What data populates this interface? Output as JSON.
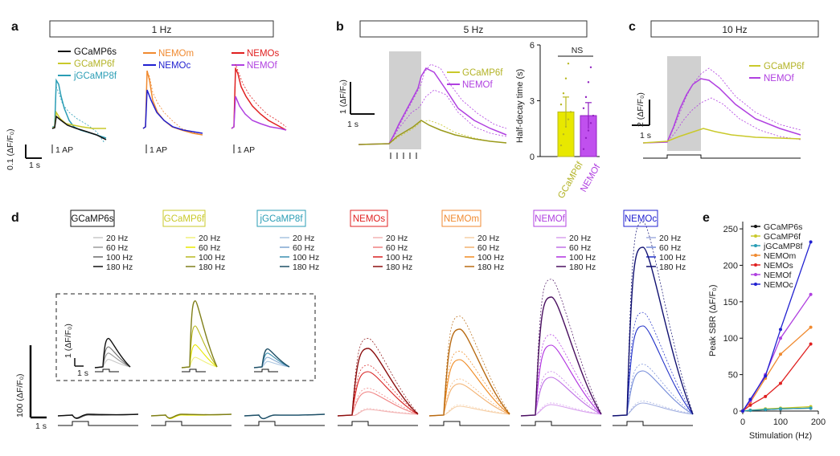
{
  "panels": {
    "a": {
      "label": "a",
      "header": "1 Hz",
      "group1": [
        "GCaMP6s",
        "GCaMP6f",
        "jGCaMP8f"
      ],
      "group2": [
        "NEMOm",
        "NEMOc"
      ],
      "group3": [
        "NEMOs",
        "NEMOf"
      ],
      "scale_y": "0.1 (ΔF/F₀)",
      "scale_x": "1 s",
      "stim": "1 AP"
    },
    "b": {
      "label": "b",
      "header": "5 Hz",
      "legend": [
        "GCaMP6f",
        "NEMOf"
      ],
      "scale_y": "1 (ΔF/F₀)",
      "scale_x": "1 s",
      "bar_ylabel": "Half-decay time (s)",
      "ns": "NS"
    },
    "c": {
      "label": "c",
      "header": "10 Hz",
      "legend": [
        "GCaMP6f",
        "NEMOf"
      ],
      "scale_y": "2 (ΔF/F₀)",
      "scale_x": "1 s"
    },
    "d": {
      "label": "d",
      "scale_y": "100 (ΔF/F₀)",
      "scale_x": "1 s",
      "inset_scale_y": "1 (ΔF/F₀)",
      "inset_scale_x": "1 s",
      "sensors": [
        {
          "name": "GCaMP6s",
          "color": "#111111",
          "freqs": [
            "20 Hz",
            "60 Hz",
            "100 Hz",
            "180 Hz"
          ],
          "shades": [
            "#c8c8c8",
            "#9a9a9a",
            "#6a6a6a",
            "#111111"
          ]
        },
        {
          "name": "GCaMP6f",
          "color": "#c9c92a",
          "freqs": [
            "20 Hz",
            "60 Hz",
            "100 Hz",
            "180 Hz"
          ],
          "shades": [
            "#f0f07a",
            "#e8e800",
            "#b8b820",
            "#7f7f1a"
          ]
        },
        {
          "name": "jGCaMP8f",
          "color": "#2a9db5",
          "freqs": [
            "20 Hz",
            "60 Hz",
            "100 Hz",
            "180 Hz"
          ],
          "shades": [
            "#a9c4e0",
            "#7fa6d0",
            "#3b8fb0",
            "#1e4f66"
          ]
        },
        {
          "name": "NEMOs",
          "color": "#e02020",
          "freqs": [
            "20 Hz",
            "60 Hz",
            "100 Hz",
            "180 Hz"
          ],
          "shades": [
            "#f2b3b3",
            "#f08080",
            "#d82020",
            "#8c0f0f"
          ]
        },
        {
          "name": "NEMOm",
          "color": "#f08a30",
          "freqs": [
            "20 Hz",
            "60 Hz",
            "100 Hz",
            "180 Hz"
          ],
          "shades": [
            "#f6cfa6",
            "#f3b06e",
            "#f08a20",
            "#b86a12"
          ]
        },
        {
          "name": "NEMOf",
          "color": "#b040e0",
          "freqs": [
            "20 Hz",
            "60 Hz",
            "100 Hz",
            "180 Hz"
          ],
          "shades": [
            "#d8a0ee",
            "#c070e6",
            "#b030e0",
            "#4a1060"
          ]
        },
        {
          "name": "NEMOc",
          "color": "#2020d0",
          "freqs": [
            "20 Hz",
            "60 Hz",
            "100 Hz",
            "180 Hz"
          ],
          "shades": [
            "#a0aee0",
            "#7088d8",
            "#2030c8",
            "#101070"
          ]
        }
      ]
    },
    "e": {
      "label": "e",
      "legend_colors": [
        "#111111",
        "#c9c92a",
        "#2a9db5",
        "#f08a30",
        "#e02020",
        "#b040e0",
        "#2020d0"
      ]
    }
  },
  "chart_data": [
    {
      "type": "bar",
      "panel": "b",
      "categories": [
        "GCaMP6f",
        "NEMOf"
      ],
      "values": [
        2.4,
        2.2
      ],
      "errors": [
        0.8,
        0.7
      ],
      "ylabel": "Half-decay time (s)",
      "ylim": [
        0,
        6
      ],
      "yticks": [
        "0",
        "3",
        "6"
      ],
      "annotation": "NS"
    },
    {
      "type": "line",
      "panel": "e",
      "title": "",
      "xlabel": "Stimulation (Hz)",
      "ylabel": "Peak SBR (ΔF/F₀)",
      "xlim": [
        0,
        200
      ],
      "ylim": [
        0,
        260
      ],
      "xticks": [
        "0",
        "100",
        "200"
      ],
      "yticks": [
        "0",
        "50",
        "100",
        "150",
        "200",
        "250"
      ],
      "x": [
        0,
        20,
        60,
        100,
        180
      ],
      "series": [
        {
          "name": "GCaMP6s",
          "values": [
            0,
            1,
            2,
            3,
            4
          ]
        },
        {
          "name": "GCaMP6f",
          "values": [
            0,
            1,
            3,
            4,
            6
          ]
        },
        {
          "name": "jGCaMP8f",
          "values": [
            0,
            1,
            2,
            3,
            4
          ]
        },
        {
          "name": "NEMOm",
          "values": [
            0,
            12,
            45,
            78,
            115
          ]
        },
        {
          "name": "NEMOs",
          "values": [
            0,
            8,
            20,
            38,
            92
          ]
        },
        {
          "name": "NEMOf",
          "values": [
            0,
            14,
            50,
            100,
            160
          ]
        },
        {
          "name": "NEMOc",
          "values": [
            0,
            16,
            48,
            112,
            232
          ]
        }
      ]
    }
  ]
}
